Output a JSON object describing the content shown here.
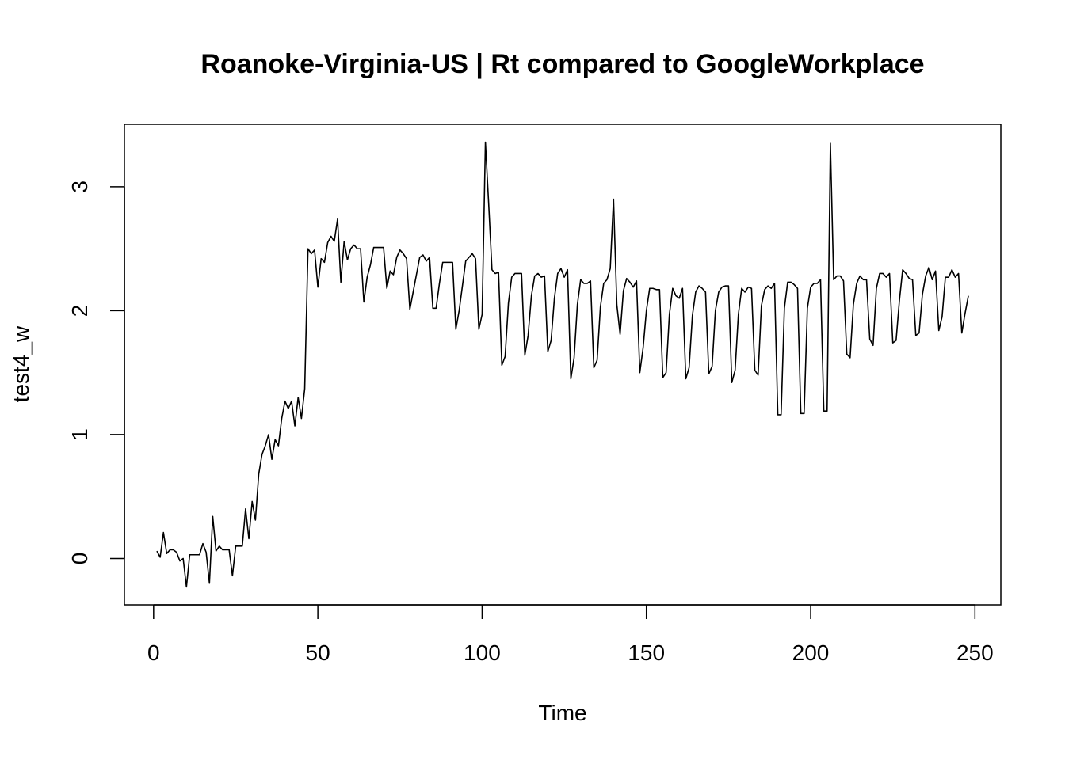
{
  "chart_data": {
    "type": "line",
    "title": "Roanoke-Virginia-US | Rt compared to GoogleWorkplace",
    "x_label": "Time",
    "y_label": "test4_w",
    "x": [
      1,
      2,
      3,
      4,
      5,
      6,
      7,
      8,
      9,
      10,
      11,
      12,
      13,
      14,
      15,
      16,
      17,
      18,
      19,
      20,
      21,
      22,
      23,
      24,
      25,
      26,
      27,
      28,
      29,
      30,
      31,
      32,
      33,
      34,
      35,
      36,
      37,
      38,
      39,
      40,
      41,
      42,
      43,
      44,
      45,
      46,
      47,
      48,
      49,
      50,
      51,
      52,
      53,
      54,
      55,
      56,
      57,
      58,
      59,
      60,
      61,
      62,
      63,
      64,
      65,
      66,
      67,
      68,
      69,
      70,
      71,
      72,
      73,
      74,
      75,
      76,
      77,
      78,
      79,
      80,
      81,
      82,
      83,
      84,
      85,
      86,
      87,
      88,
      89,
      90,
      91,
      92,
      93,
      94,
      95,
      96,
      97,
      98,
      99,
      100,
      101,
      102,
      103,
      104,
      105,
      106,
      107,
      108,
      109,
      110,
      111,
      112,
      113,
      114,
      115,
      116,
      117,
      118,
      119,
      120,
      121,
      122,
      123,
      124,
      125,
      126,
      127,
      128,
      129,
      130,
      131,
      132,
      133,
      134,
      135,
      136,
      137,
      138,
      139,
      140,
      141,
      142,
      143,
      144,
      145,
      146,
      147,
      148,
      149,
      150,
      151,
      152,
      153,
      154,
      155,
      156,
      157,
      158,
      159,
      160,
      161,
      162,
      163,
      164,
      165,
      166,
      167,
      168,
      169,
      170,
      171,
      172,
      173,
      174,
      175,
      176,
      177,
      178,
      179,
      180,
      181,
      182,
      183,
      184,
      185,
      186,
      187,
      188,
      189,
      190,
      191,
      192,
      193,
      194,
      195,
      196,
      197,
      198,
      199,
      200,
      201,
      202,
      203,
      204,
      205,
      206,
      207,
      208,
      209,
      210,
      211,
      212,
      213,
      214,
      215,
      216,
      217,
      218,
      219,
      220,
      221,
      222,
      223,
      224,
      225,
      226,
      227,
      228,
      229,
      230,
      231,
      232,
      233,
      234,
      235,
      236,
      237,
      238,
      239,
      240,
      241,
      242,
      243,
      244,
      245,
      246,
      247,
      248
    ],
    "series": [
      {
        "name": "test4_w",
        "color": "#000000",
        "values": [
          0.06,
          0.01,
          0.21,
          0.04,
          0.07,
          0.07,
          0.05,
          -0.02,
          0.0,
          -0.23,
          0.03,
          0.03,
          0.03,
          0.03,
          0.12,
          0.05,
          -0.2,
          0.34,
          0.06,
          0.1,
          0.07,
          0.07,
          0.07,
          -0.14,
          0.1,
          0.1,
          0.1,
          0.4,
          0.16,
          0.46,
          0.31,
          0.68,
          0.84,
          0.91,
          1.0,
          0.8,
          0.96,
          0.91,
          1.13,
          1.27,
          1.21,
          1.27,
          1.07,
          1.3,
          1.13,
          1.37,
          2.5,
          2.46,
          2.49,
          2.19,
          2.42,
          2.39,
          2.55,
          2.6,
          2.56,
          2.74,
          2.23,
          2.56,
          2.41,
          2.5,
          2.53,
          2.5,
          2.5,
          2.07,
          2.27,
          2.37,
          2.51,
          2.51,
          2.51,
          2.51,
          2.18,
          2.32,
          2.29,
          2.43,
          2.49,
          2.46,
          2.42,
          2.01,
          2.15,
          2.29,
          2.43,
          2.45,
          2.4,
          2.43,
          2.02,
          2.02,
          2.22,
          2.39,
          2.39,
          2.39,
          2.39,
          1.85,
          2.0,
          2.2,
          2.4,
          2.43,
          2.46,
          2.42,
          1.85,
          1.97,
          3.36,
          2.86,
          2.33,
          2.3,
          2.31,
          1.56,
          1.63,
          2.06,
          2.27,
          2.3,
          2.3,
          2.3,
          1.64,
          1.8,
          2.12,
          2.28,
          2.3,
          2.27,
          2.28,
          1.67,
          1.76,
          2.1,
          2.3,
          2.34,
          2.27,
          2.33,
          1.45,
          1.62,
          2.05,
          2.25,
          2.22,
          2.22,
          2.24,
          1.54,
          1.6,
          2.03,
          2.22,
          2.25,
          2.34,
          2.9,
          2.05,
          1.81,
          2.16,
          2.26,
          2.23,
          2.19,
          2.24,
          1.5,
          1.7,
          2.0,
          2.18,
          2.18,
          2.17,
          2.17,
          1.46,
          1.5,
          1.97,
          2.18,
          2.12,
          2.1,
          2.18,
          1.45,
          1.54,
          1.96,
          2.15,
          2.2,
          2.18,
          2.15,
          1.49,
          1.55,
          2.0,
          2.15,
          2.19,
          2.2,
          2.2,
          1.42,
          1.52,
          1.97,
          2.18,
          2.15,
          2.19,
          2.18,
          1.52,
          1.48,
          2.04,
          2.17,
          2.2,
          2.18,
          2.22,
          1.16,
          1.16,
          2.02,
          2.23,
          2.23,
          2.21,
          2.18,
          1.17,
          1.17,
          2.02,
          2.19,
          2.22,
          2.22,
          2.25,
          1.19,
          1.19,
          3.35,
          2.25,
          2.28,
          2.28,
          2.24,
          1.65,
          1.62,
          2.05,
          2.22,
          2.28,
          2.25,
          2.25,
          1.77,
          1.72,
          2.18,
          2.3,
          2.3,
          2.27,
          2.3,
          1.74,
          1.76,
          2.08,
          2.33,
          2.3,
          2.26,
          2.25,
          1.8,
          1.82,
          2.13,
          2.28,
          2.35,
          2.25,
          2.32,
          1.84,
          1.95,
          2.27,
          2.27,
          2.33,
          2.27,
          2.3,
          1.82,
          1.98,
          2.12
        ]
      }
    ],
    "xlim": [
      -8.88,
      257.88
    ],
    "ylim": [
      -0.374,
      3.504
    ],
    "xticks": [
      0,
      50,
      100,
      150,
      200,
      250
    ],
    "yticks": [
      0,
      1,
      2,
      3
    ]
  }
}
